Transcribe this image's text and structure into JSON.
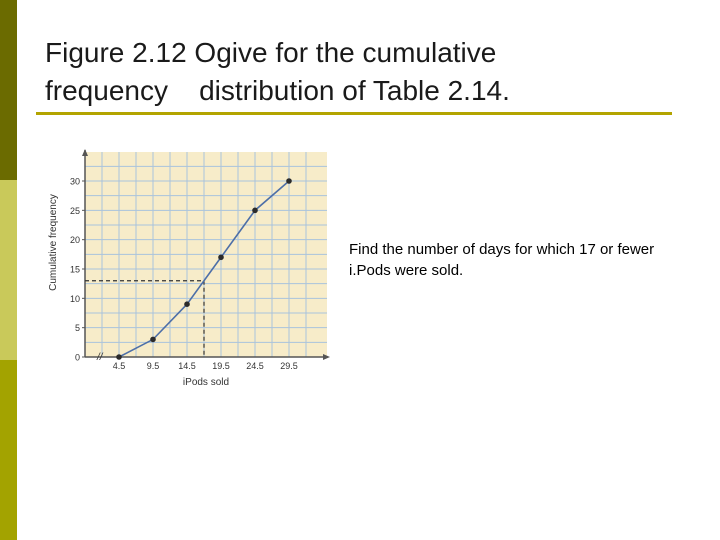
{
  "slide": {
    "title": "Figure 2.12 Ogive for the cumulative\nfrequency    distribution of Table 2.14.",
    "note": "Find the number of days for which 17 or fewer i.Pods were sold."
  },
  "colors": {
    "sidebar_dark": "#6b6b00",
    "sidebar_light": "#c9c95a",
    "sidebar_mid": "#a3a300",
    "rule": "#b3a400",
    "plot_bg": "#f7ecc9",
    "grid": "#a9c3dd",
    "line": "#4d6fa8",
    "marker": "#2b2b2b",
    "axis": "#555555",
    "dashed": "#333333"
  },
  "chart_data": {
    "type": "line",
    "xlabel": "iPods sold",
    "ylabel": "Cumulative frequency",
    "x": [
      4.5,
      9.5,
      14.5,
      19.5,
      24.5,
      29.5
    ],
    "x_tick_labels": [
      "4.5",
      "9.5",
      "14.5",
      "19.5",
      "24.5",
      "29.5"
    ],
    "series": [
      {
        "values": [
          0,
          3,
          9,
          17,
          25,
          30
        ]
      }
    ],
    "y_ticks": [
      0,
      5,
      10,
      15,
      20,
      25,
      30
    ],
    "ylim": [
      0,
      30
    ],
    "grid": true,
    "axis_break_symbol": "//",
    "reference": {
      "x": 17,
      "y": 13
    }
  }
}
